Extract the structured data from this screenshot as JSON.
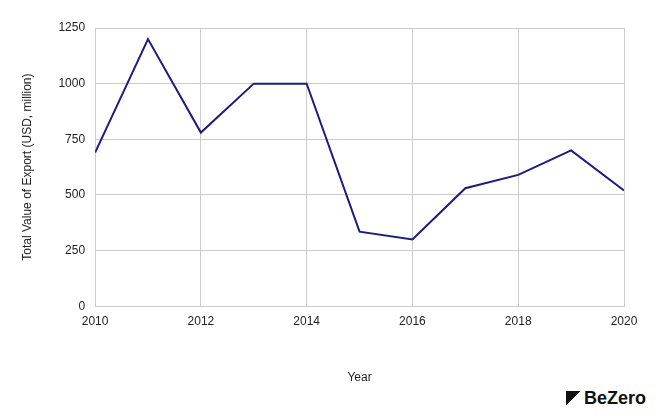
{
  "chart_data": {
    "type": "line",
    "x_label": "Year",
    "y_label": "Total Value of Export (USD, million)",
    "annotation": "BeZero",
    "x": [
      2010,
      2011,
      2012,
      2013,
      2014,
      2015,
      2016,
      2017,
      2018,
      2019,
      2020
    ],
    "values": [
      690,
      1200,
      780,
      1000,
      1000,
      335,
      300,
      530,
      590,
      700,
      520
    ],
    "color": "#1c1c80",
    "marker": "none",
    "xlim": [
      2010,
      2020
    ],
    "xticks": [
      2010,
      2012,
      2014,
      2016,
      2018,
      2020
    ],
    "ylim": [
      0,
      1250
    ],
    "yticks": [
      0,
      250,
      500,
      750,
      1000,
      1250
    ],
    "grid": true
  }
}
